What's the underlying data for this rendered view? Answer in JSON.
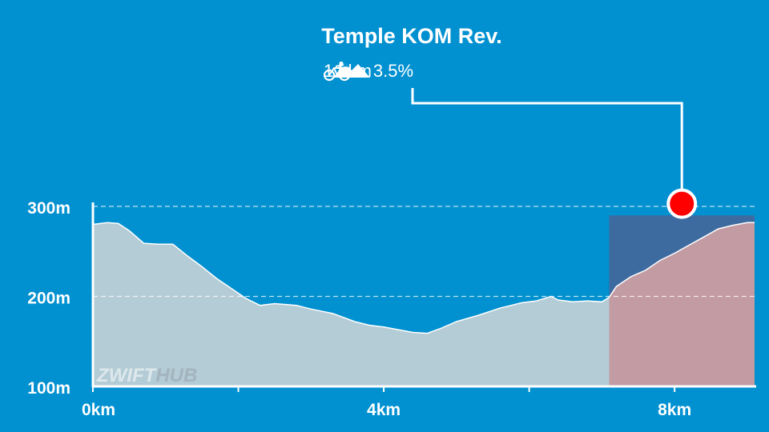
{
  "segment": {
    "name": "Temple KOM Rev.",
    "distance": "1.9km",
    "grade": "3.5%"
  },
  "watermark": {
    "part1": "ZWIFT",
    "part2": "HUB"
  },
  "colors": {
    "background": "#0190d0",
    "profile_fill": "#b4ccd6",
    "segment_fill": "#c29ba3",
    "segment_bg": "#3d6ba0",
    "marker": "#ff0000"
  },
  "chart_data": {
    "type": "area",
    "title": "",
    "xlabel": "",
    "ylabel": "",
    "xlim": [
      0,
      9.1
    ],
    "ylim": [
      100,
      300
    ],
    "x_ticks": [
      0,
      2,
      4,
      6,
      8
    ],
    "x_tick_labels": [
      {
        "value": 0,
        "label": "0km"
      },
      {
        "value": 4,
        "label": "4km"
      },
      {
        "value": 8,
        "label": "8km"
      }
    ],
    "y_ticks": [
      {
        "value": 100,
        "label": "100m"
      },
      {
        "value": 200,
        "label": "200m"
      },
      {
        "value": 300,
        "label": "300m"
      }
    ],
    "grid_dashed_at": [
      200,
      300
    ],
    "highlight": {
      "x_start": 7.1,
      "x_end": 9.1,
      "y_top": 290
    },
    "marker": {
      "x": 8.1,
      "y": 303
    },
    "x": [
      0,
      0.2,
      0.35,
      0.5,
      0.7,
      0.9,
      1.1,
      1.3,
      1.5,
      1.7,
      1.9,
      2.1,
      2.3,
      2.5,
      2.8,
      3.0,
      3.3,
      3.6,
      3.8,
      4.0,
      4.2,
      4.4,
      4.6,
      4.8,
      5.0,
      5.3,
      5.6,
      5.9,
      6.1,
      6.3,
      6.4,
      6.6,
      6.8,
      7.0,
      7.1,
      7.2,
      7.4,
      7.6,
      7.8,
      8.0,
      8.2,
      8.4,
      8.6,
      8.8,
      9.0,
      9.1
    ],
    "values": [
      280,
      282,
      281,
      273,
      259,
      258,
      258,
      245,
      233,
      220,
      209,
      198,
      190,
      192,
      190,
      186,
      181,
      172,
      168,
      166,
      163,
      160,
      159,
      165,
      172,
      179,
      187,
      193,
      195,
      200,
      196,
      194,
      195,
      194,
      199,
      211,
      222,
      229,
      240,
      248,
      257,
      266,
      275,
      279,
      282,
      282
    ]
  }
}
